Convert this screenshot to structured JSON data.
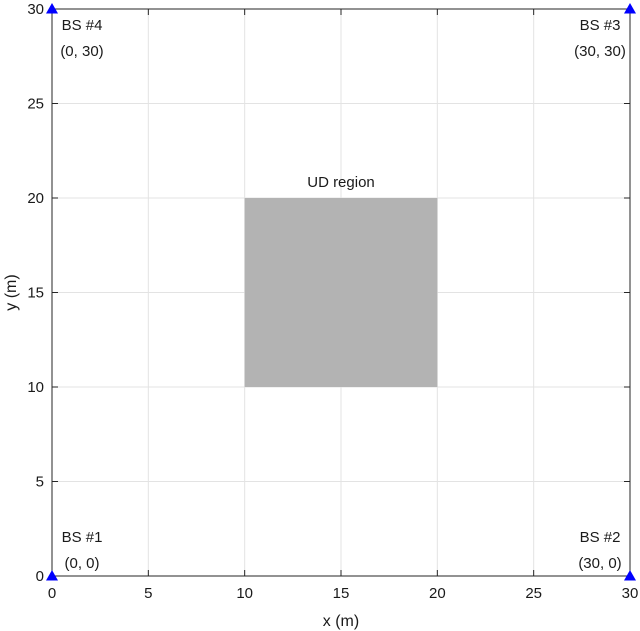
{
  "chart_data": {
    "type": "scatter",
    "xlabel": "x (m)",
    "ylabel": "y (m)",
    "xlim": [
      0,
      30
    ],
    "ylim": [
      0,
      30
    ],
    "xticks": [
      0,
      5,
      10,
      15,
      20,
      25,
      30
    ],
    "yticks": [
      0,
      5,
      10,
      15,
      20,
      25,
      30
    ],
    "grid": true,
    "region": {
      "label": "UD region",
      "x": [
        10,
        20
      ],
      "y": [
        10,
        20
      ],
      "color": "#b3b3b3"
    },
    "marker_color": "#0000ff",
    "base_stations": [
      {
        "name": "BS #1",
        "coord": "(0, 0)",
        "x": 0,
        "y": 0
      },
      {
        "name": "BS #2",
        "coord": "(30, 0)",
        "x": 30,
        "y": 0
      },
      {
        "name": "BS #3",
        "coord": "(30, 30)",
        "x": 30,
        "y": 30
      },
      {
        "name": "BS #4",
        "coord": "(0, 30)",
        "x": 0,
        "y": 30
      }
    ]
  }
}
